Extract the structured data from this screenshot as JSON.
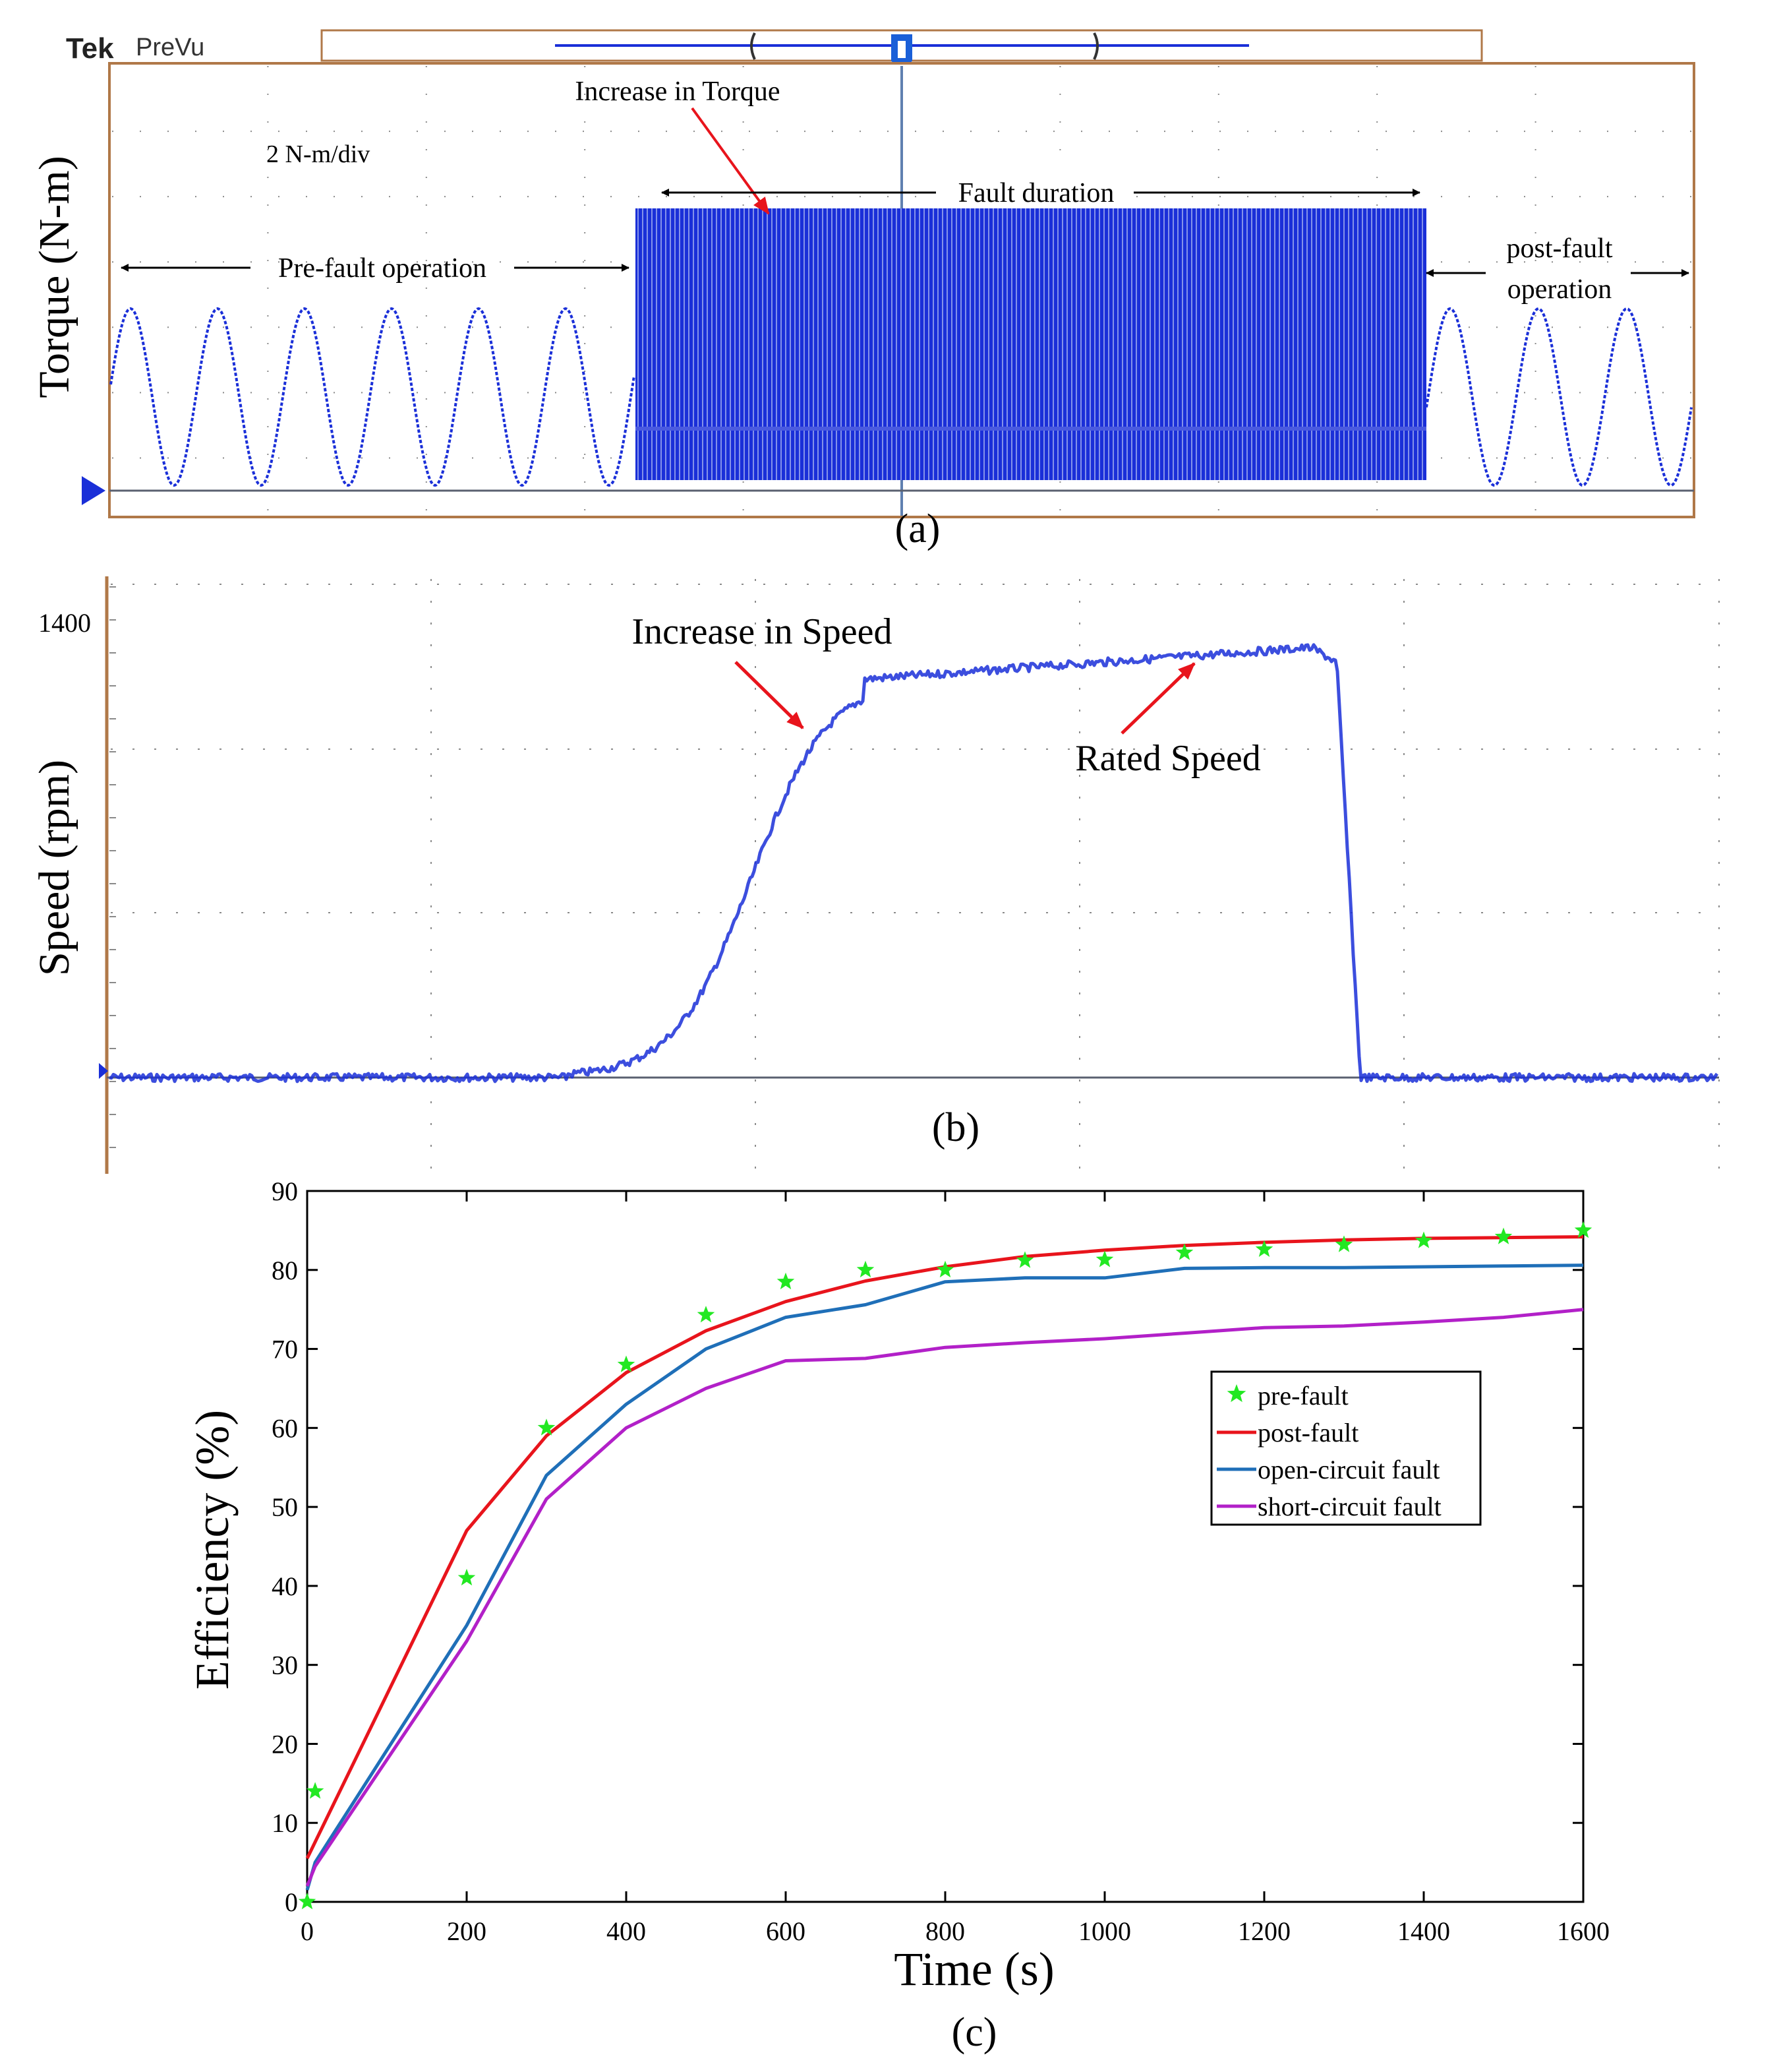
{
  "panel_a": {
    "brand": "Tek",
    "brand_suffix": "PreVu",
    "ylabel": "Torque (N-m)",
    "scale_label": "2 N-m/div",
    "annotations": {
      "increase": "Increase in Torque",
      "fault_duration": "Fault duration",
      "pre_fault": "Pre-fault operation",
      "post_fault_line1": "post-fault",
      "post_fault_line2": "operation"
    },
    "caption": "(a)",
    "colors": {
      "trace": "#1a2fd8",
      "frame": "#b07848",
      "arrow": "#e8141c",
      "grid": "#8a8a8a",
      "marker": "#1a5fd8"
    }
  },
  "panel_b": {
    "ylabel": "Speed (rpm)",
    "ytick": "1400",
    "annotations": {
      "increase": "Increase in Speed",
      "rated": "Rated Speed"
    },
    "caption": "(b)",
    "colors": {
      "trace": "#1a2fd8",
      "axis": "#b07848",
      "arrow": "#e8141c"
    }
  },
  "panel_c": {
    "caption": "(c)"
  },
  "chart_data": [
    {
      "type": "line",
      "panel": "a",
      "title": "",
      "ylabel": "Torque (N-m)",
      "scale": "2 N-m/div",
      "segments": [
        {
          "name": "Pre-fault operation",
          "waveform": "sinusoid",
          "cycles": 6
        },
        {
          "name": "Fault duration",
          "waveform": "high-frequency oscillation"
        },
        {
          "name": "post-fault operation",
          "waveform": "sinusoid",
          "cycles": 3
        }
      ]
    },
    {
      "type": "line",
      "panel": "b",
      "ylabel": "Speed (rpm)",
      "yticks": [
        1400
      ],
      "phases": [
        "standstill",
        "Increase in Speed",
        "Rated Speed",
        "drop"
      ]
    },
    {
      "type": "line",
      "panel": "c",
      "xlabel": "Time (s)",
      "ylabel": "Efficiency (%)",
      "xlim": [
        0,
        1600
      ],
      "ylim": [
        0,
        90
      ],
      "xticks": [
        0,
        200,
        400,
        600,
        800,
        1000,
        1200,
        1400,
        1600
      ],
      "yticks": [
        0,
        10,
        20,
        30,
        40,
        50,
        60,
        70,
        80,
        90
      ],
      "legend_position": "center-right",
      "series": [
        {
          "name": "pre-fault",
          "style": "markers",
          "marker": "star",
          "color": "#22e822",
          "x": [
            0,
            10,
            200,
            300,
            400,
            500,
            600,
            700,
            800,
            900,
            1000,
            1100,
            1200,
            1300,
            1400,
            1500,
            1600
          ],
          "y": [
            0,
            14,
            41,
            60,
            68,
            74.3,
            78.5,
            80,
            80,
            81.2,
            81.3,
            82.2,
            82.6,
            83.2,
            83.7,
            84.2,
            85
          ]
        },
        {
          "name": "post-fault",
          "style": "line",
          "color": "#e8141c",
          "x": [
            0,
            200,
            300,
            400,
            500,
            600,
            700,
            800,
            900,
            1000,
            1100,
            1200,
            1300,
            1400,
            1500,
            1600
          ],
          "y": [
            5.5,
            47,
            59,
            67,
            72.3,
            76,
            78.6,
            80.4,
            81.7,
            82.5,
            83.1,
            83.5,
            83.8,
            84,
            84.1,
            84.2
          ]
        },
        {
          "name": "open-circuit fault",
          "style": "line",
          "color": "#1f6fb8",
          "x": [
            0,
            10,
            200,
            300,
            400,
            500,
            600,
            700,
            800,
            900,
            1000,
            1100,
            1200,
            1300,
            1400,
            1500,
            1600
          ],
          "y": [
            1.5,
            5,
            35,
            54,
            63,
            70,
            74,
            75.6,
            78.5,
            79,
            79,
            80.2,
            80.3,
            80.3,
            80.4,
            80.5,
            80.6
          ]
        },
        {
          "name": "short-circuit fault",
          "style": "line",
          "color": "#b220c8",
          "x": [
            0,
            10,
            200,
            300,
            400,
            500,
            600,
            700,
            800,
            900,
            1000,
            1100,
            1200,
            1300,
            1400,
            1500,
            1600
          ],
          "y": [
            2,
            4.5,
            33,
            51,
            60,
            65,
            68.5,
            68.8,
            70.2,
            70.8,
            71.3,
            72,
            72.7,
            72.9,
            73.4,
            74,
            75
          ]
        }
      ]
    }
  ]
}
